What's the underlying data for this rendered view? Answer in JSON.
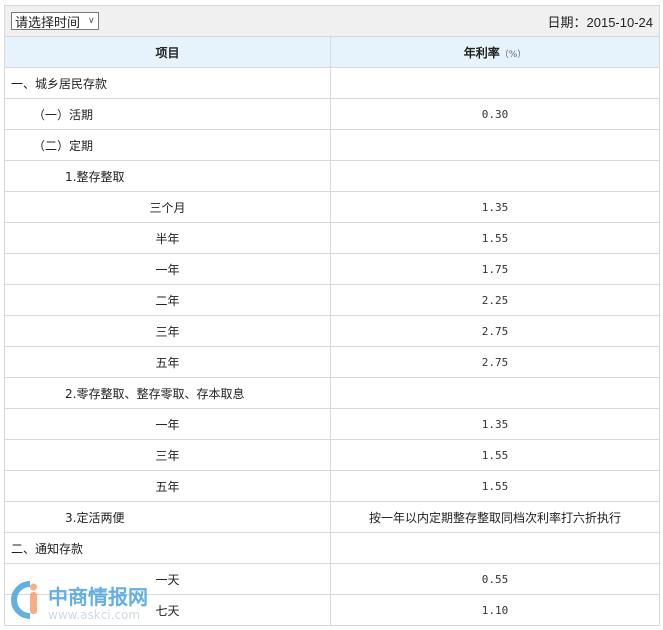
{
  "toolbar": {
    "select_value": "请选择时间",
    "date_label": "日期：2015-10-24"
  },
  "table": {
    "headers": [
      "项目",
      "年利率"
    ],
    "unit": "（%）",
    "rows": [
      {
        "item": "一、城乡居民存款",
        "rate": "",
        "level": 1
      },
      {
        "item": "（一）活期",
        "rate": "0.30",
        "level": 2
      },
      {
        "item": "（二）定期",
        "rate": "",
        "level": 2
      },
      {
        "item": "1.整存整取",
        "rate": "",
        "level": 3
      },
      {
        "item": "三个月",
        "rate": "1.35",
        "level": 4
      },
      {
        "item": "半年",
        "rate": "1.55",
        "level": 4
      },
      {
        "item": "一年",
        "rate": "1.75",
        "level": 4
      },
      {
        "item": "二年",
        "rate": "2.25",
        "level": 4
      },
      {
        "item": "三年",
        "rate": "2.75",
        "level": 4
      },
      {
        "item": "五年",
        "rate": "2.75",
        "level": 4
      },
      {
        "item": "2.零存整取、整存零取、存本取息",
        "rate": "",
        "level": 3
      },
      {
        "item": "一年",
        "rate": "1.35",
        "level": 4
      },
      {
        "item": "三年",
        "rate": "1.55",
        "level": 4
      },
      {
        "item": "五年",
        "rate": "1.55",
        "level": 4
      },
      {
        "item": "3.定活两便",
        "rate": "按一年以内定期整存整取同档次利率打六折执行",
        "level": 3
      },
      {
        "item": "二、通知存款",
        "rate": "",
        "level": 1
      },
      {
        "item": "一天",
        "rate": "0.55",
        "level": 4
      },
      {
        "item": "七天",
        "rate": "1.10",
        "level": 4
      }
    ]
  },
  "watermark": {
    "name": "中商情报网",
    "url": "www.askci.com"
  },
  "colors": {
    "header_bg": "#e6f3fd",
    "toolbar_bg": "#f0f0f0",
    "watermark_blue": "#4aa3df",
    "watermark_orange": "#f4a070"
  }
}
